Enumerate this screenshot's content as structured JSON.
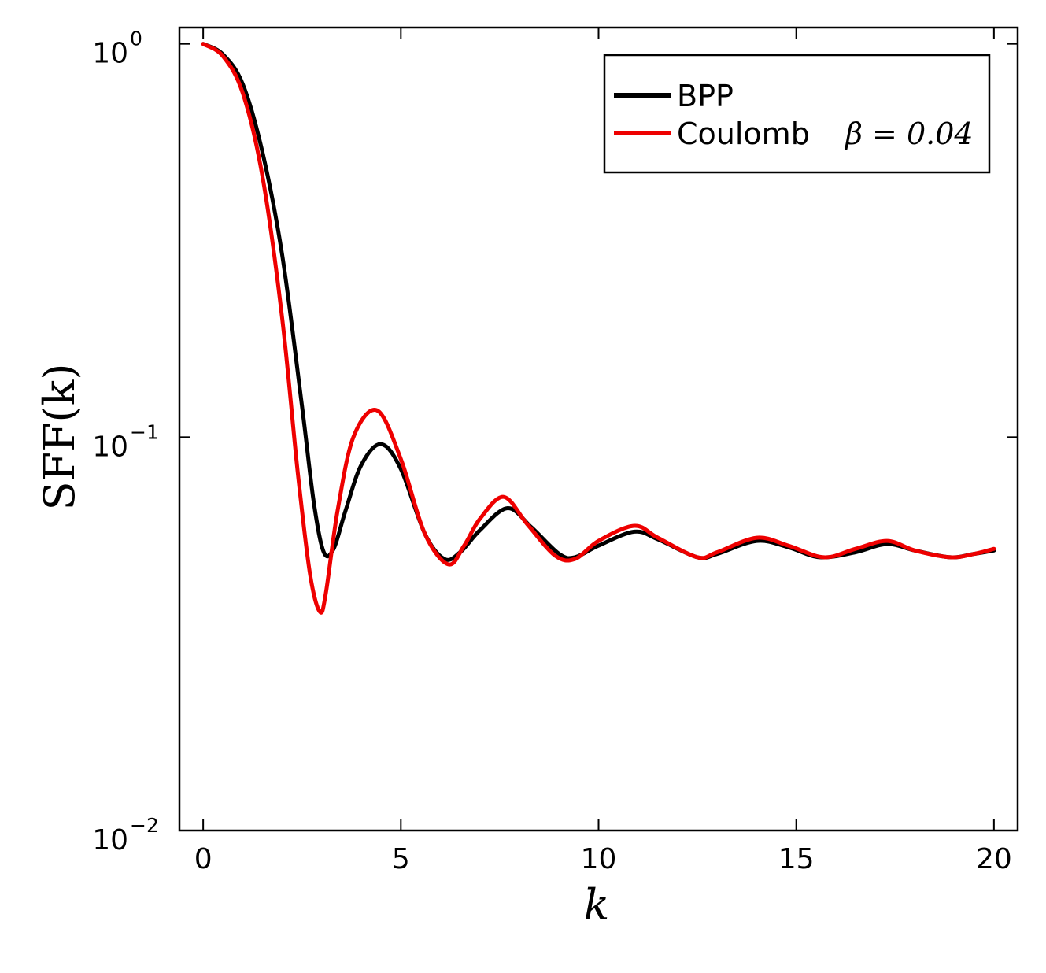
{
  "chart_data": {
    "type": "line",
    "xlabel": "k",
    "ylabel": "SFF(k)",
    "xlim": [
      -0.6,
      20.6
    ],
    "ylim": [
      0.01,
      1.1
    ],
    "yscale": "log",
    "xticks": [
      0,
      5,
      10,
      15,
      20
    ],
    "xtick_labels": [
      "0",
      "5",
      "10",
      "15",
      "20"
    ],
    "yticks": [
      {
        "value": 1,
        "base": "10",
        "exp": "0"
      },
      {
        "value": 0.1,
        "base": "10",
        "exp": "−1"
      },
      {
        "value": 0.01,
        "base": "10",
        "exp": "−2"
      }
    ],
    "grid": false,
    "legend_position": "top-right",
    "series": [
      {
        "name": "BPP",
        "color": "#000000",
        "x": [
          0,
          0.5,
          1,
          1.5,
          2,
          2.5,
          2.8,
          3.05,
          3.3,
          3.6,
          4,
          4.5,
          5,
          5.6,
          6.1,
          6.5,
          7,
          7.7,
          8.3,
          9,
          9.4,
          10,
          10.9,
          11.5,
          12.5,
          13,
          14,
          14.8,
          15.6,
          16.5,
          17.3,
          18,
          18.9,
          19.5,
          20
        ],
        "y": [
          1.0,
          0.94,
          0.79,
          0.53,
          0.29,
          0.12,
          0.068,
          0.051,
          0.052,
          0.065,
          0.085,
          0.096,
          0.083,
          0.057,
          0.049,
          0.051,
          0.058,
          0.066,
          0.059,
          0.0505,
          0.0495,
          0.053,
          0.0575,
          0.055,
          0.0495,
          0.0505,
          0.0545,
          0.0525,
          0.0495,
          0.051,
          0.0535,
          0.0515,
          0.0495,
          0.0505,
          0.0515
        ]
      },
      {
        "name": "Coulomb β = 0.04",
        "color": "#ee0000",
        "x": [
          0,
          0.5,
          1,
          1.5,
          2,
          2.4,
          2.7,
          2.95,
          3.1,
          3.4,
          3.8,
          4.4,
          5,
          5.6,
          6.2,
          6.6,
          7,
          7.6,
          8.2,
          8.9,
          9.4,
          10,
          10.9,
          11.5,
          12.5,
          13,
          14,
          14.8,
          15.7,
          16.5,
          17.3,
          18,
          18.9,
          19.5,
          20
        ],
        "y": [
          1.0,
          0.93,
          0.75,
          0.46,
          0.2,
          0.08,
          0.045,
          0.036,
          0.04,
          0.065,
          0.1,
          0.117,
          0.088,
          0.057,
          0.0475,
          0.053,
          0.062,
          0.0705,
          0.06,
          0.05,
          0.049,
          0.0545,
          0.0595,
          0.0555,
          0.0495,
          0.051,
          0.0555,
          0.053,
          0.0495,
          0.052,
          0.0545,
          0.0515,
          0.0495,
          0.0505,
          0.052
        ]
      }
    ]
  },
  "legend": {
    "items": [
      {
        "label": "BPP",
        "math": ""
      },
      {
        "label": "Coulomb",
        "math": "β = 0.04"
      }
    ]
  }
}
